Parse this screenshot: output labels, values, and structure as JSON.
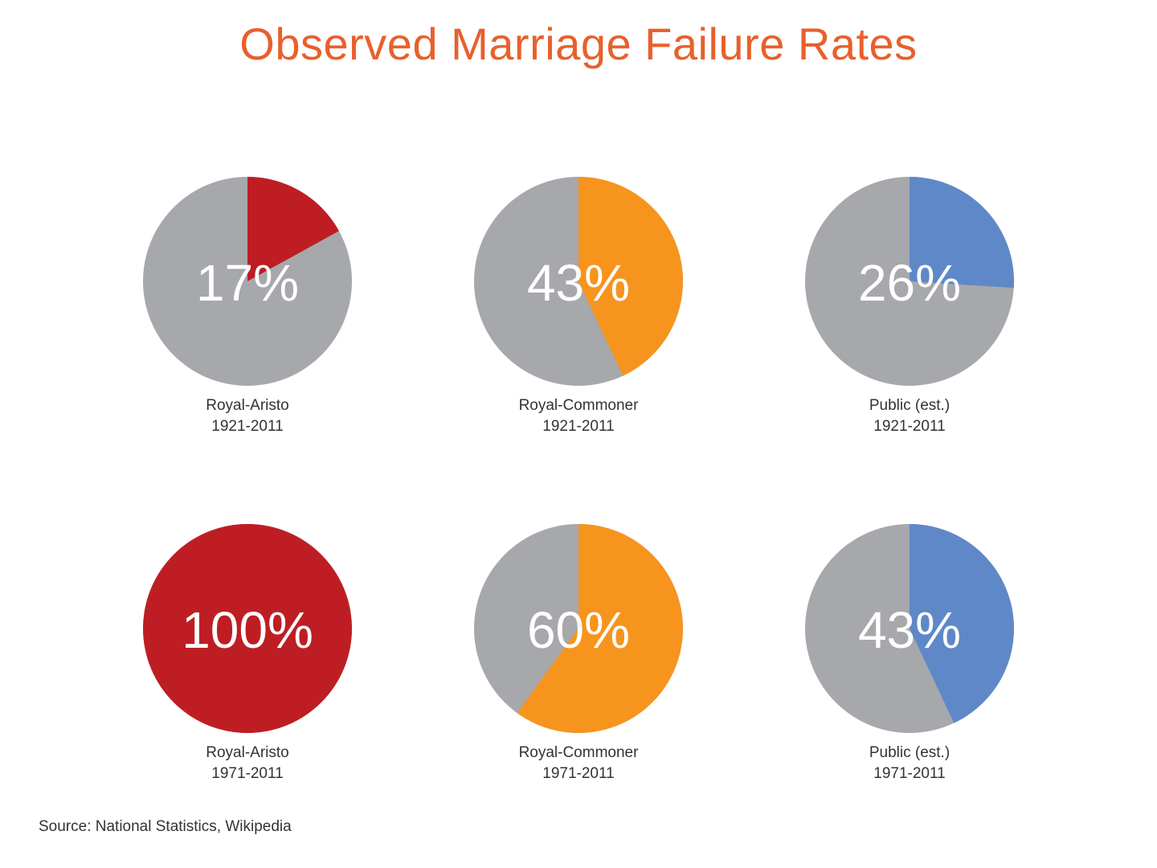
{
  "title": "Observed Marriage Failure Rates",
  "source": "Source: National Statistics, Wikipedia",
  "colors": {
    "title": "#e8602c",
    "background_slice": "#a7a8ab",
    "royal_aristo": "#be1e23",
    "royal_commoner": "#f7941d",
    "public": "#5f88c8"
  },
  "chart_data": [
    {
      "type": "pie",
      "name": "Royal-Aristo",
      "period": "1921-2011",
      "value": 17,
      "label": "17%",
      "color_key": "royal_aristo"
    },
    {
      "type": "pie",
      "name": "Royal-Commoner",
      "period": "1921-2011",
      "value": 43,
      "label": "43%",
      "color_key": "royal_commoner"
    },
    {
      "type": "pie",
      "name": "Public (est.)",
      "period": "1921-2011",
      "value": 26,
      "label": "26%",
      "color_key": "public"
    },
    {
      "type": "pie",
      "name": "Royal-Aristo",
      "period": "1971-2011",
      "value": 100,
      "label": "100%",
      "color_key": "royal_aristo"
    },
    {
      "type": "pie",
      "name": "Royal-Commoner",
      "period": "1971-2011",
      "value": 60,
      "label": "60%",
      "color_key": "royal_commoner"
    },
    {
      "type": "pie",
      "name": "Public (est.)",
      "period": "1971-2011",
      "value": 43,
      "label": "43%",
      "color_key": "public"
    }
  ]
}
